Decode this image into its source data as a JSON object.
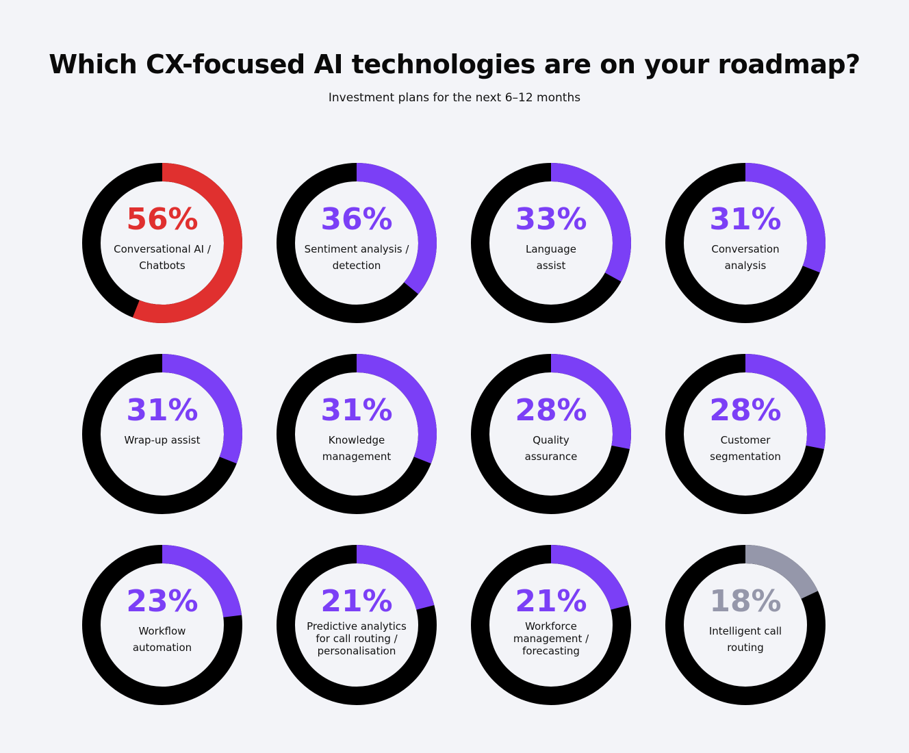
{
  "header": {
    "title": "Which CX-focused AI technologies are on your roadmap?",
    "subtitle": "Investment plans for the next 6–12 months"
  },
  "chart_data": [
    {
      "type": "donut",
      "categories": [
        "Conversational AI / Chatbots"
      ],
      "values": [
        56
      ],
      "value_labels": [
        "56%"
      ],
      "color": "#e0302f"
    },
    {
      "type": "donut",
      "categories": [
        "Sentiment analysis / detection"
      ],
      "values": [
        36
      ],
      "value_labels": [
        "36%"
      ],
      "color": "#7b3ff6"
    },
    {
      "type": "donut",
      "categories": [
        "Language assist"
      ],
      "values": [
        33
      ],
      "value_labels": [
        "33%"
      ],
      "color": "#7b3ff6"
    },
    {
      "type": "donut",
      "categories": [
        "Conversation analysis"
      ],
      "values": [
        31
      ],
      "value_labels": [
        "31%"
      ],
      "color": "#7b3ff6"
    },
    {
      "type": "donut",
      "categories": [
        "Wrap-up assist"
      ],
      "values": [
        31
      ],
      "value_labels": [
        "31%"
      ],
      "color": "#7b3ff6"
    },
    {
      "type": "donut",
      "categories": [
        "Knowledge management"
      ],
      "values": [
        31
      ],
      "value_labels": [
        "31%"
      ],
      "color": "#7b3ff6"
    },
    {
      "type": "donut",
      "categories": [
        "Quality assurance"
      ],
      "values": [
        28
      ],
      "value_labels": [
        "28%"
      ],
      "color": "#7b3ff6"
    },
    {
      "type": "donut",
      "categories": [
        "Customer segmentation"
      ],
      "values": [
        28
      ],
      "value_labels": [
        "28%"
      ],
      "color": "#7b3ff6"
    },
    {
      "type": "donut",
      "categories": [
        "Workflow automation"
      ],
      "values": [
        23
      ],
      "value_labels": [
        "23%"
      ],
      "color": "#7b3ff6"
    },
    {
      "type": "donut",
      "categories": [
        "Predictive analytics for call routing / personalisation"
      ],
      "values": [
        21
      ],
      "value_labels": [
        "21%"
      ],
      "color": "#7b3ff6"
    },
    {
      "type": "donut",
      "categories": [
        "Workforce management / forecasting"
      ],
      "values": [
        21
      ],
      "value_labels": [
        "21%"
      ],
      "color": "#7b3ff6"
    },
    {
      "type": "donut",
      "categories": [
        "Intelligent call routing"
      ],
      "values": [
        18
      ],
      "value_labels": [
        "18%"
      ],
      "color": "#9597aa"
    }
  ]
}
